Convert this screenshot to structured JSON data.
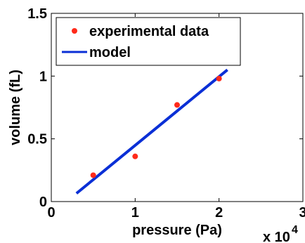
{
  "chart_data": {
    "type": "scatter",
    "xlabel": "pressure (Pa)",
    "ylabel": "volume (fL)",
    "x_exponent_label": "x 10",
    "x_exponent_power": "4",
    "xlim": [
      0,
      3
    ],
    "ylim": [
      0,
      1.5
    ],
    "xticks": [
      0,
      1,
      2,
      3
    ],
    "xtick_labels": [
      "0",
      "1",
      "2",
      "3"
    ],
    "yticks": [
      0,
      0.5,
      1,
      1.5
    ],
    "ytick_labels": [
      "0",
      "0.5",
      "1",
      "1.5"
    ],
    "grid": false,
    "legend_position": "top-left",
    "series": [
      {
        "name": "experimental data",
        "kind": "points",
        "color": "#ff2a1a",
        "x": [
          0.5,
          1.0,
          1.5,
          2.0
        ],
        "y": [
          0.21,
          0.36,
          0.77,
          0.98
        ]
      },
      {
        "name": "model",
        "kind": "line",
        "color": "#0a2fd6",
        "x": [
          0.3,
          2.1
        ],
        "y": [
          0.065,
          1.05
        ]
      }
    ]
  }
}
